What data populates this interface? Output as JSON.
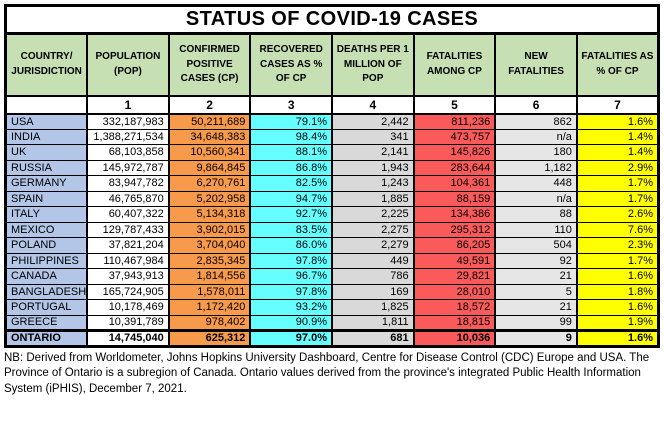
{
  "chart_data": {
    "type": "table",
    "title": "STATUS OF COVID-19 CASES",
    "columns": [
      {
        "id": "country",
        "label": "COUNTRY/ JURISDICTION",
        "number": ""
      },
      {
        "id": "population",
        "label": "POPULATION (POP)",
        "number": "1"
      },
      {
        "id": "confirmed",
        "label": "CONFIRMED POSITIVE CASES (CP)",
        "number": "2"
      },
      {
        "id": "recovered_pct",
        "label": "RECOVERED CASES AS % OF CP",
        "number": "3"
      },
      {
        "id": "deaths_per_million",
        "label": "DEATHS PER 1 MILLION OF POP",
        "number": "4"
      },
      {
        "id": "fatalities",
        "label": "FATALITIES AMONG CP",
        "number": "5"
      },
      {
        "id": "new_fatalities",
        "label": "NEW FATALITIES",
        "number": "6"
      },
      {
        "id": "fatality_pct",
        "label": "FATALITIES AS % OF CP",
        "number": "7"
      }
    ],
    "rows": [
      {
        "country": "USA",
        "population": "332,187,983",
        "confirmed": "50,211,689",
        "recovered_pct": "79.1%",
        "deaths_per_million": "2,442",
        "fatalities": "811,236",
        "new_fatalities": "862",
        "fatality_pct": "1.6%"
      },
      {
        "country": "INDIA",
        "population": "1,388,271,534",
        "confirmed": "34,648,383",
        "recovered_pct": "98.4%",
        "deaths_per_million": "341",
        "fatalities": "473,757",
        "new_fatalities": "n/a",
        "fatality_pct": "1.4%"
      },
      {
        "country": "UK",
        "population": "68,103,858",
        "confirmed": "10,560,341",
        "recovered_pct": "88.1%",
        "deaths_per_million": "2,141",
        "fatalities": "145,826",
        "new_fatalities": "180",
        "fatality_pct": "1.4%"
      },
      {
        "country": "RUSSIA",
        "population": "145,972,787",
        "confirmed": "9,864,845",
        "recovered_pct": "86.8%",
        "deaths_per_million": "1,943",
        "fatalities": "283,644",
        "new_fatalities": "1,182",
        "fatality_pct": "2.9%"
      },
      {
        "country": "GERMANY",
        "population": "83,947,782",
        "confirmed": "6,270,761",
        "recovered_pct": "82.5%",
        "deaths_per_million": "1,243",
        "fatalities": "104,361",
        "new_fatalities": "448",
        "fatality_pct": "1.7%"
      },
      {
        "country": "SPAIN",
        "population": "46,765,870",
        "confirmed": "5,202,958",
        "recovered_pct": "94.7%",
        "deaths_per_million": "1,885",
        "fatalities": "88,159",
        "new_fatalities": "n/a",
        "fatality_pct": "1.7%"
      },
      {
        "country": "ITALY",
        "population": "60,407,322",
        "confirmed": "5,134,318",
        "recovered_pct": "92.7%",
        "deaths_per_million": "2,225",
        "fatalities": "134,386",
        "new_fatalities": "88",
        "fatality_pct": "2.6%"
      },
      {
        "country": "MEXICO",
        "population": "129,787,433",
        "confirmed": "3,902,015",
        "recovered_pct": "83.5%",
        "deaths_per_million": "2,275",
        "fatalities": "295,312",
        "new_fatalities": "110",
        "fatality_pct": "7.6%"
      },
      {
        "country": "POLAND",
        "population": "37,821,204",
        "confirmed": "3,704,040",
        "recovered_pct": "86.0%",
        "deaths_per_million": "2,279",
        "fatalities": "86,205",
        "new_fatalities": "504",
        "fatality_pct": "2.3%"
      },
      {
        "country": "PHILIPPINES",
        "population": "110,467,984",
        "confirmed": "2,835,345",
        "recovered_pct": "97.8%",
        "deaths_per_million": "449",
        "fatalities": "49,591",
        "new_fatalities": "92",
        "fatality_pct": "1.7%"
      },
      {
        "country": "CANADA",
        "population": "37,943,913",
        "confirmed": "1,814,556",
        "recovered_pct": "96.7%",
        "deaths_per_million": "786",
        "fatalities": "29,821",
        "new_fatalities": "21",
        "fatality_pct": "1.6%"
      },
      {
        "country": "BANGLADESH",
        "population": "165,724,905",
        "confirmed": "1,578,011",
        "recovered_pct": "97.8%",
        "deaths_per_million": "169",
        "fatalities": "28,010",
        "new_fatalities": "5",
        "fatality_pct": "1.8%"
      },
      {
        "country": "PORTUGAL",
        "population": "10,178,469",
        "confirmed": "1,172,420",
        "recovered_pct": "93.2%",
        "deaths_per_million": "1,825",
        "fatalities": "18,572",
        "new_fatalities": "21",
        "fatality_pct": "1.6%"
      },
      {
        "country": "GREECE",
        "population": "10,391,789",
        "confirmed": "978,402",
        "recovered_pct": "90.9%",
        "deaths_per_million": "1,811",
        "fatalities": "18,815",
        "new_fatalities": "99",
        "fatality_pct": "1.9%"
      },
      {
        "country": "ONTARIO",
        "population": "14,745,040",
        "confirmed": "625,312",
        "recovered_pct": "97.0%",
        "deaths_per_million": "681",
        "fatalities": "10,036",
        "new_fatalities": "9",
        "fatality_pct": "1.6%"
      }
    ],
    "bold_row": "ONTARIO"
  },
  "footer_note": "NB: Derived from Worldometer, Johns Hopkins University Dashboard, Centre for Disease Control (CDC) Europe and USA. The Province of Ontario is a subregion of Canada. Ontario values derived from the province's integrated Public Health Information System (iPHIS), December 7, 2021.",
  "colors": {
    "header_bg": "#C6E0B4",
    "country_bg": "#B4C6E7",
    "population_bg": "#FFFFFF",
    "confirmed_bg": "#F79A4B",
    "recovered_bg": "#66FFFF",
    "deaths_bg": "#D9D9D9",
    "fatalities_bg": "#FA5A5A",
    "new_fatalities_bg": "#E7E6E6",
    "fatality_pct_bg": "#FFFF00"
  }
}
